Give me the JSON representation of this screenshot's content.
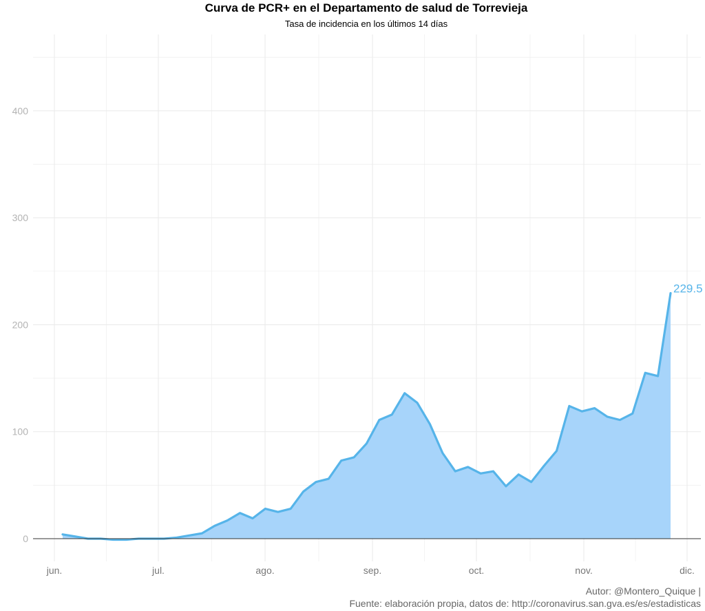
{
  "chart_data": {
    "type": "area",
    "title": "Curva de PCR+ en el Departamento de salud de Torrevieja",
    "subtitle": "Tasa de incidencia en los últimos 14 días",
    "xlabel": "",
    "ylabel": "",
    "ylim": [
      -20,
      460
    ],
    "y_ticks": [
      0,
      100,
      200,
      300,
      400
    ],
    "x_ticks": [
      "jun.",
      "jul.",
      "ago.",
      "sep.",
      "oct.",
      "nov.",
      "dic."
    ],
    "grid": true,
    "series": [
      {
        "values": [
          4,
          2,
          0,
          0,
          -1,
          -1,
          0,
          0,
          0,
          1,
          3,
          5,
          12,
          17,
          24,
          19,
          28,
          25,
          28,
          44,
          53,
          56,
          73,
          76,
          89,
          111,
          116,
          136,
          127,
          107,
          80,
          63,
          67,
          61,
          63,
          49,
          60,
          53,
          68,
          82,
          124,
          119,
          122,
          114,
          111,
          117,
          155,
          152,
          229.5
        ]
      }
    ],
    "last_value_label": "229.5",
    "colors": {
      "line": "#56B4E9",
      "fill": "#A7D4FA",
      "zero_line": "#333333",
      "grid": "#EBEBEB",
      "tick_label": "#B3B3B3"
    }
  },
  "caption": {
    "line1": "Autor: @Montero_Quique |",
    "line2": "Fuente: elaboración propia, datos de: http://coronavirus.san.gva.es/es/estadisticas"
  }
}
